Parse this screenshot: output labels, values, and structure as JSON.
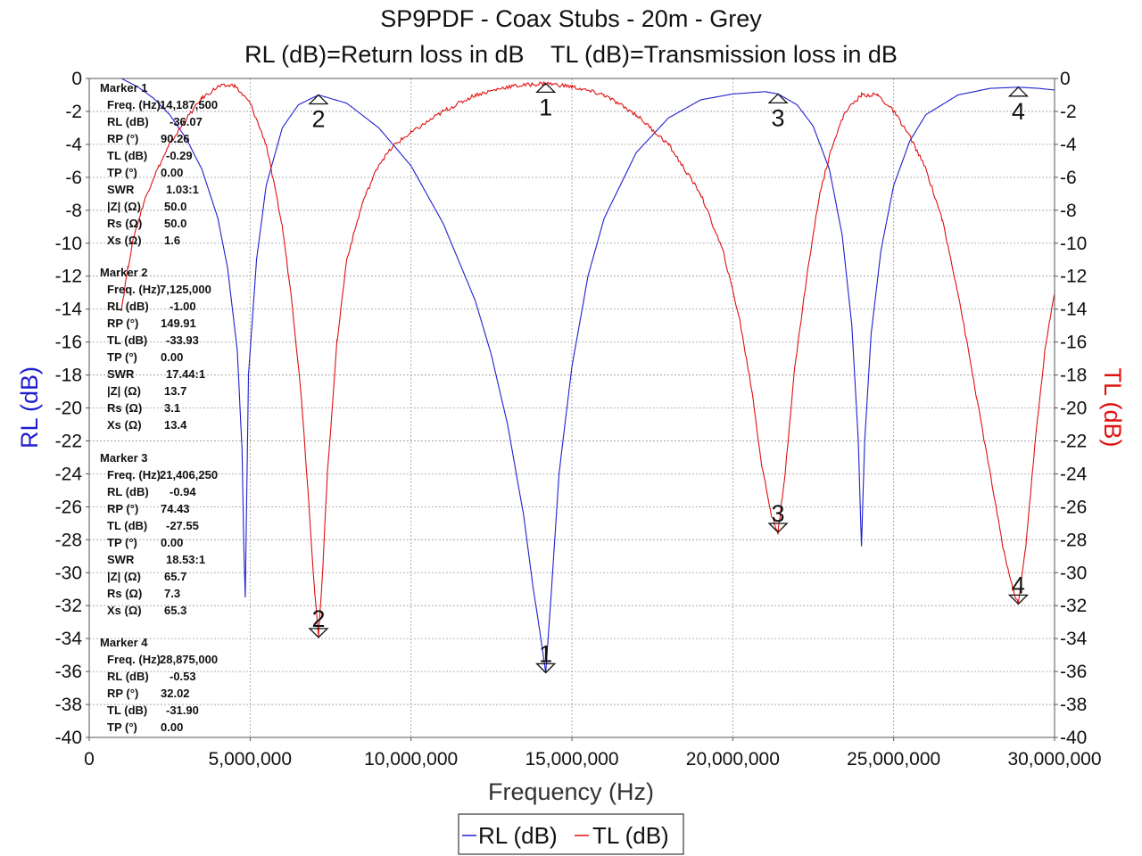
{
  "chart_data": {
    "type": "line",
    "title": "SP9PDF - Coax Stubs - 20m - Grey",
    "subtitle": "RL (dB)=Return loss in dB    TL (dB)=Transmission loss in dB",
    "xlabel": "Frequency (Hz)",
    "ylabel_left": "RL (dB)",
    "ylabel_right": "TL (dB)",
    "xlim": [
      0,
      30000000
    ],
    "ylim": [
      -40,
      0
    ],
    "x_ticks": [
      0,
      5000000,
      10000000,
      15000000,
      20000000,
      25000000,
      30000000
    ],
    "x_tick_labels": [
      "0",
      "5,000,000",
      "10,000,000",
      "15,000,000",
      "20,000,000",
      "25,000,000",
      "30,000,000"
    ],
    "y_ticks": [
      0,
      -2,
      -4,
      -6,
      -8,
      -10,
      -12,
      -14,
      -16,
      -18,
      -20,
      -22,
      -24,
      -26,
      -28,
      -30,
      -32,
      -34,
      -36,
      -38,
      -40
    ],
    "y_tick_labels": [
      "0",
      "-2",
      "-4",
      "-6",
      "-8",
      "-10",
      "-12",
      "-14",
      "-16",
      "-18",
      "-20",
      "-22",
      "-24",
      "-26",
      "-28",
      "-30",
      "-32",
      "-34",
      "-36",
      "-38",
      "-40"
    ],
    "grid": true,
    "legend_position": "bottom-center",
    "colors": {
      "rl": "#1f1fd0",
      "tl": "#e01010"
    },
    "series": [
      {
        "name": "RL (dB)",
        "axis": "left",
        "x": [
          1000000,
          1500000,
          2000000,
          2500000,
          3000000,
          3500000,
          4000000,
          4300000,
          4600000,
          4750000,
          4800000,
          4850000,
          4950000,
          5200000,
          5500000,
          6000000,
          6500000,
          7125000,
          8000000,
          9000000,
          10000000,
          11000000,
          12000000,
          12500000,
          13000000,
          13500000,
          13800000,
          14000000,
          14187500,
          14350000,
          14600000,
          15000000,
          15500000,
          16000000,
          17000000,
          18000000,
          19000000,
          20000000,
          21000000,
          21406250,
          22000000,
          22500000,
          23000000,
          23400000,
          23700000,
          23900000,
          24000000,
          24100000,
          24300000,
          24600000,
          25000000,
          25500000,
          26000000,
          27000000,
          28000000,
          28875000,
          29500000,
          30000000
        ],
        "y": [
          0,
          -0.5,
          -1.2,
          -2.2,
          -3.6,
          -5.5,
          -8.5,
          -11.5,
          -16.5,
          -22.5,
          -28.0,
          -31.5,
          -18.0,
          -11.0,
          -6.5,
          -3.0,
          -1.6,
          -1.0,
          -1.5,
          -3.0,
          -5.3,
          -8.8,
          -13.5,
          -16.8,
          -21.0,
          -26.5,
          -31.0,
          -33.5,
          -36.07,
          -31.5,
          -24.0,
          -17.5,
          -12.0,
          -8.5,
          -4.5,
          -2.4,
          -1.3,
          -0.94,
          -0.8,
          -0.94,
          -1.6,
          -2.9,
          -5.5,
          -9.5,
          -15.0,
          -22.0,
          -28.4,
          -22.0,
          -15.5,
          -10.5,
          -6.5,
          -3.8,
          -2.2,
          -1.0,
          -0.6,
          -0.53,
          -0.6,
          -0.7
        ]
      },
      {
        "name": "TL (dB)",
        "axis": "right",
        "x": [
          1000000,
          1200000,
          1400000,
          1700000,
          2000000,
          2500000,
          3000000,
          3500000,
          4000000,
          4500000,
          5000000,
          5500000,
          6000000,
          6300000,
          6600000,
          6850000,
          7000000,
          7125000,
          7250000,
          7400000,
          7700000,
          8000000,
          8500000,
          9000000,
          9500000,
          10000000,
          11000000,
          12000000,
          13000000,
          14187500,
          15000000,
          16000000,
          17000000,
          18000000,
          19000000,
          19700000,
          20200000,
          20600000,
          20900000,
          21200000,
          21406250,
          21600000,
          21900000,
          22300000,
          22700000,
          23100000,
          23500000,
          24000000,
          24500000,
          25000000,
          25500000,
          26000000,
          26500000,
          27000000,
          27500000,
          28000000,
          28400000,
          28700000,
          28875000,
          29100000,
          29400000,
          29700000,
          30000000
        ],
        "y": [
          -14.0,
          -11.5,
          -9.5,
          -7.5,
          -6.0,
          -4.0,
          -2.5,
          -1.2,
          -0.5,
          -0.4,
          -1.5,
          -4.0,
          -9.0,
          -13.5,
          -19.5,
          -26.5,
          -31.0,
          -33.93,
          -30.0,
          -24.0,
          -16.0,
          -11.0,
          -7.5,
          -5.2,
          -4.0,
          -3.3,
          -2.0,
          -1.0,
          -0.5,
          -0.29,
          -0.5,
          -1.0,
          -2.2,
          -4.0,
          -7.0,
          -10.5,
          -14.5,
          -19.0,
          -23.5,
          -26.5,
          -27.55,
          -24.5,
          -18.0,
          -12.0,
          -7.0,
          -4.0,
          -2.0,
          -1.0,
          -1.0,
          -2.0,
          -3.5,
          -5.5,
          -8.5,
          -13.0,
          -18.5,
          -24.0,
          -28.5,
          -31.0,
          -31.9,
          -28.5,
          -22.0,
          -16.5,
          -13.0
        ]
      }
    ],
    "markers": [
      {
        "id": "1",
        "title": "Marker 1",
        "freq": 14187500,
        "rl": -36.07,
        "tl": -0.29,
        "lines": [
          {
            "label": "Freq. (Hz)",
            "value": "14,187,500"
          },
          {
            "label": "RL (dB)",
            "value": "-36.07"
          },
          {
            "label": "RP (°)",
            "value": "90.26"
          },
          {
            "label": "TL (dB)",
            "value": "-0.29"
          },
          {
            "label": "TP (°)",
            "value": "0.00"
          },
          {
            "label": "SWR",
            "value": "1.03:1"
          },
          {
            "label": "|Z| (Ω)",
            "value": "50.0"
          },
          {
            "label": "Rs (Ω)",
            "value": "50.0"
          },
          {
            "label": "Xs (Ω)",
            "value": "1.6"
          }
        ]
      },
      {
        "id": "2",
        "title": "Marker 2",
        "freq": 7125000,
        "rl": -1.0,
        "tl": -33.93,
        "lines": [
          {
            "label": "Freq. (Hz)",
            "value": "7,125,000"
          },
          {
            "label": "RL (dB)",
            "value": "-1.00"
          },
          {
            "label": "RP (°)",
            "value": "149.91"
          },
          {
            "label": "TL (dB)",
            "value": "-33.93"
          },
          {
            "label": "TP (°)",
            "value": "0.00"
          },
          {
            "label": "SWR",
            "value": "17.44:1"
          },
          {
            "label": "|Z| (Ω)",
            "value": "13.7"
          },
          {
            "label": "Rs (Ω)",
            "value": "3.1"
          },
          {
            "label": "Xs (Ω)",
            "value": "13.4"
          }
        ]
      },
      {
        "id": "3",
        "title": "Marker 3",
        "freq": 21406250,
        "rl": -0.94,
        "tl": -27.55,
        "lines": [
          {
            "label": "Freq. (Hz)",
            "value": "21,406,250"
          },
          {
            "label": "RL (dB)",
            "value": "-0.94"
          },
          {
            "label": "RP (°)",
            "value": "74.43"
          },
          {
            "label": "TL (dB)",
            "value": "-27.55"
          },
          {
            "label": "TP (°)",
            "value": "0.00"
          },
          {
            "label": "SWR",
            "value": "18.53:1"
          },
          {
            "label": "|Z| (Ω)",
            "value": "65.7"
          },
          {
            "label": "Rs (Ω)",
            "value": "7.3"
          },
          {
            "label": "Xs (Ω)",
            "value": "65.3"
          }
        ]
      },
      {
        "id": "4",
        "title": "Marker 4",
        "freq": 28875000,
        "rl": -0.53,
        "tl": -31.9,
        "lines": [
          {
            "label": "Freq. (Hz)",
            "value": "28,875,000"
          },
          {
            "label": "RL (dB)",
            "value": "-0.53"
          },
          {
            "label": "RP (°)",
            "value": "32.02"
          },
          {
            "label": "TL (dB)",
            "value": "-31.90"
          },
          {
            "label": "TP (°)",
            "value": "0.00"
          }
        ]
      }
    ]
  }
}
